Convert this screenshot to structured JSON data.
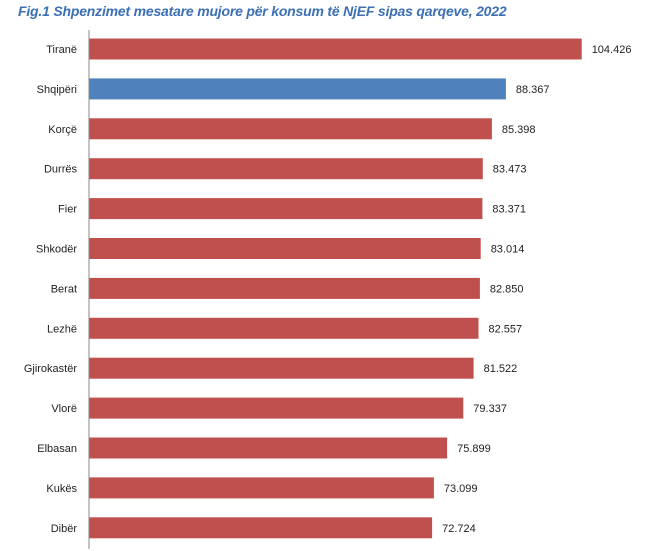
{
  "title": "Fig.1 Shpenzimet mesatare mujore për konsum të NjEF sipas qarqeve, 2022",
  "colors": {
    "default_bar": "#c0504d",
    "highlight_bar": "#4f81bd",
    "title": "#3b6fb6",
    "axis": "#888888"
  },
  "chart_data": {
    "type": "bar",
    "orientation": "horizontal",
    "title": "Fig.1 Shpenzimet mesatare mujore për konsum të NjEF sipas qarqeve, 2022",
    "xlabel": "",
    "ylabel": "",
    "xlim": [
      0,
      110
    ],
    "grid": false,
    "legend": "none",
    "highlight": "Shqipëri",
    "categories": [
      "Tiranë",
      "Shqipëri",
      "Korçë",
      "Durrës",
      "Fier",
      "Shkodër",
      "Berat",
      "Lezhë",
      "Gjirokastër",
      "Vlorë",
      "Elbasan",
      "Kukës",
      "Dibër"
    ],
    "values": [
      104.426,
      88.367,
      85.398,
      83.473,
      83.371,
      83.014,
      82.85,
      82.557,
      81.522,
      79.337,
      75.899,
      73.099,
      72.724
    ],
    "value_labels": [
      "104.426",
      "88.367",
      "85.398",
      "83.473",
      "83.371",
      "83.014",
      "82.850",
      "82.557",
      "81.522",
      "79.337",
      "75.899",
      "73.099",
      "72.724"
    ]
  }
}
